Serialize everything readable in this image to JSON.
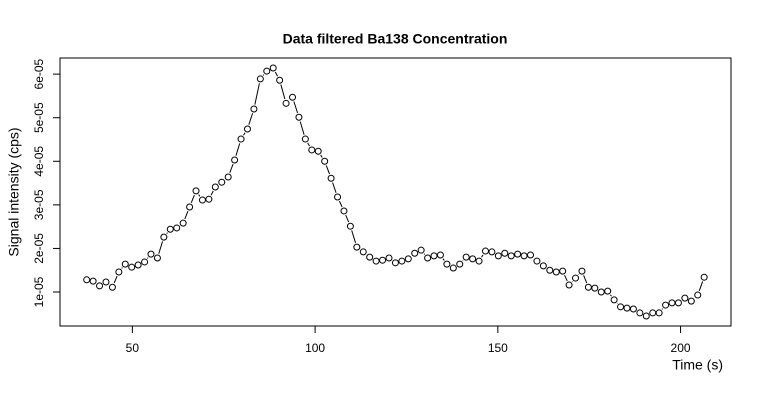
{
  "chart_data": {
    "type": "scatter",
    "mode": "points-and-lines",
    "title": "Data filtered Ba138 Concentration",
    "xlabel": "Time (s)",
    "ylabel": "Signal intensity (cps)",
    "color": "#000000",
    "x": [
      37.5,
      39.26,
      41.02,
      42.78,
      44.54,
      46.3,
      48.06,
      49.82,
      51.58,
      53.34,
      55.1,
      56.86,
      58.62,
      60.38,
      62.14,
      63.9,
      65.66,
      67.42,
      69.18,
      70.94,
      72.7,
      74.46,
      76.22,
      77.98,
      79.74,
      81.5,
      83.26,
      85.02,
      86.78,
      88.54,
      90.3,
      92.06,
      93.82,
      95.58,
      97.34,
      99.1,
      100.86,
      102.62,
      104.38,
      106.14,
      107.9,
      109.66,
      111.42,
      113.18,
      114.94,
      116.7,
      118.46,
      120.22,
      121.98,
      123.74,
      125.5,
      127.26,
      129.02,
      130.78,
      132.54,
      134.3,
      136.06,
      137.82,
      139.58,
      141.34,
      143.1,
      144.86,
      146.62,
      148.38,
      150.14,
      151.9,
      153.66,
      155.42,
      157.18,
      158.94,
      160.7,
      162.46,
      164.22,
      165.98,
      167.74,
      169.5,
      171.26,
      173.02,
      174.78,
      176.54,
      178.3,
      180.06,
      181.82,
      183.58,
      185.34,
      187.1,
      188.86,
      190.62,
      192.38,
      194.14,
      195.9,
      197.66,
      199.42,
      201.18,
      202.94,
      204.7,
      206.46
    ],
    "y": [
      1.28e-05,
      1.25e-05,
      1.14e-05,
      1.23e-05,
      1.11e-05,
      1.46e-05,
      1.64e-05,
      1.57e-05,
      1.62e-05,
      1.69e-05,
      1.87e-05,
      1.78e-05,
      2.26e-05,
      2.44e-05,
      2.47e-05,
      2.58e-05,
      2.95e-05,
      3.32e-05,
      3.11e-05,
      3.13e-05,
      3.41e-05,
      3.52e-05,
      3.64e-05,
      4.03e-05,
      4.51e-05,
      4.74e-05,
      5.2e-05,
      5.89e-05,
      6.07e-05,
      6.14e-05,
      5.86e-05,
      5.33e-05,
      5.47e-05,
      5.01e-05,
      4.51e-05,
      4.26e-05,
      4.23e-05,
      4e-05,
      3.61e-05,
      3.18e-05,
      2.86e-05,
      2.51e-05,
      2.03e-05,
      1.92e-05,
      1.8e-05,
      1.71e-05,
      1.73e-05,
      1.78e-05,
      1.67e-05,
      1.71e-05,
      1.76e-05,
      1.89e-05,
      1.96e-05,
      1.78e-05,
      1.83e-05,
      1.85e-05,
      1.64e-05,
      1.55e-05,
      1.64e-05,
      1.8e-05,
      1.76e-05,
      1.71e-05,
      1.94e-05,
      1.92e-05,
      1.83e-05,
      1.89e-05,
      1.83e-05,
      1.87e-05,
      1.83e-05,
      1.85e-05,
      1.71e-05,
      1.6e-05,
      1.5e-05,
      1.46e-05,
      1.48e-05,
      1.16e-05,
      1.32e-05,
      1.48e-05,
      1.11e-05,
      1.09e-05,
      1e-05,
      1.02e-05,
      8.2e-06,
      6.6e-06,
      6.3e-06,
      6.1e-06,
      5.2e-06,
      4.5e-06,
      5.2e-06,
      5.2e-06,
      7e-06,
      7.5e-06,
      7.5e-06,
      8.6e-06,
      7.9e-06,
      9.3e-06,
      1.34e-05
    ],
    "xlim": [
      30.2,
      213.8
    ],
    "ylim": [
      2.2e-06,
      6.37e-05
    ],
    "xticks": [
      50,
      100,
      150,
      200
    ],
    "yticks": [
      {
        "value": 1e-05,
        "label": "1e-05"
      },
      {
        "value": 2e-05,
        "label": "2e-05"
      },
      {
        "value": 3e-05,
        "label": "3e-05"
      },
      {
        "value": 4e-05,
        "label": "4e-05"
      },
      {
        "value": 5e-05,
        "label": "5e-05"
      },
      {
        "value": 6e-05,
        "label": "6e-05"
      }
    ]
  }
}
